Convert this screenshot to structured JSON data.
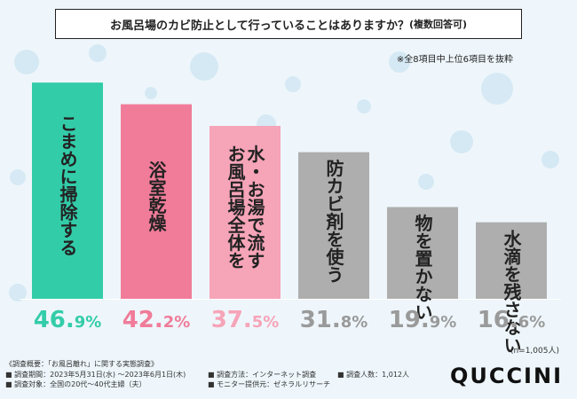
{
  "title": "お風呂場のカビ防止として行っていることはありますか？",
  "title_sub": "(複数回答可)",
  "note": "※全8項目中上位6項目を抜粋",
  "n_note": "(n=1,005人)",
  "footer": {
    "overview": "《調査概要：「お風呂離れ」に関する実態調査》",
    "period": "■ 調査期間：2023年5月31日(水) ～2023年6月1日(木)",
    "target": "■ 調査対象：全国の20代～40代主婦（夫）",
    "method": "■ 調査方法：インターネット調査",
    "provider": "■ モニター提供元：ゼネラルリサーチ",
    "people": "■ 調査人数：1,012人"
  },
  "brand": "QUCCINI",
  "colors": {
    "teal": "#33cca9",
    "pink": "#f07c99",
    "light_pink": "#f6a4b8",
    "gray": "#aeaeae"
  },
  "chart_data": {
    "type": "bar",
    "unit": "%",
    "categories": [
      "こまめに掃除する",
      "浴室乾燥",
      "お風呂場全体を水・お湯で流す",
      "防カビ剤を使う",
      "物を置かない",
      "水滴を残さない"
    ],
    "label_lines": [
      [
        "こまめに掃除する"
      ],
      [
        "浴室乾燥"
      ],
      [
        "水・お湯で流す",
        "お風呂場全体を"
      ],
      [
        "防カビ剤を使う"
      ],
      [
        "物を置かない"
      ],
      [
        "水滴を残さない"
      ]
    ],
    "values": [
      46.9,
      42.2,
      37.5,
      31.8,
      19.9,
      16.6
    ],
    "bar_colors": [
      "#33cca9",
      "#f07c99",
      "#f6a4b8",
      "#aeaeae",
      "#aeaeae",
      "#aeaeae"
    ],
    "value_colors": [
      "#33cca9",
      "#f07c99",
      "#f6a4b8",
      "#9a9a9a",
      "#9a9a9a",
      "#9a9a9a"
    ],
    "label_colors": [
      "#222222",
      "#222222",
      "#222222",
      "#222222",
      "#222222",
      "#222222"
    ]
  }
}
